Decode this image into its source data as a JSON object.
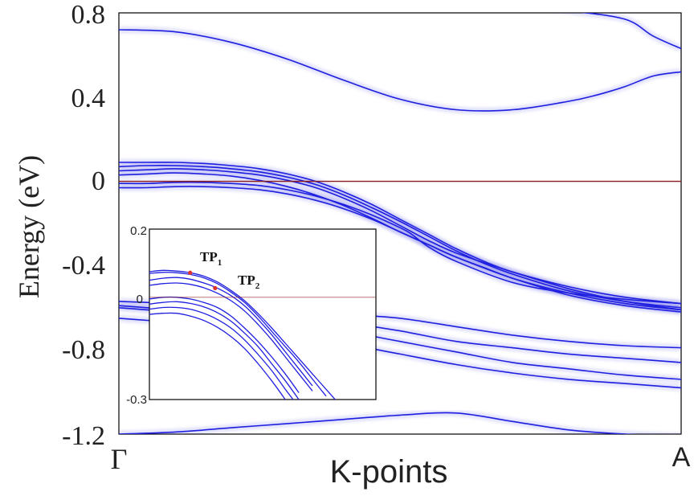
{
  "chart_data": [
    {
      "type": "line",
      "title": "",
      "xlabel": "K-points",
      "ylabel": "Energy (eV)",
      "x_range": [
        0,
        1
      ],
      "ylim": [
        -1.2,
        0.8
      ],
      "y_ticks": [
        "0.8",
        "0.4",
        "0",
        "-0.4",
        "-0.8",
        "-1.2"
      ],
      "y_tick_values": [
        0.8,
        0.4,
        0,
        -0.4,
        -0.8,
        -1.2
      ],
      "x_ticks": [
        "Γ",
        "A"
      ],
      "fermi_level": 0,
      "band_color": "#1f1fe0",
      "fermi_color": "#8b1a1a",
      "grid": false,
      "series": [
        {
          "x": [
            0,
            0.1,
            0.2,
            0.3,
            0.4,
            0.5,
            0.6,
            0.7,
            0.8,
            0.85,
            0.9,
            0.95,
            1.0
          ],
          "values": [
            0.72,
            0.71,
            0.66,
            0.58,
            0.48,
            0.39,
            0.34,
            0.34,
            0.38,
            0.41,
            0.45,
            0.5,
            0.52
          ]
        },
        {
          "x": [
            0.6,
            0.7,
            0.8,
            0.9,
            0.95,
            1.0
          ],
          "values": [
            0.85,
            0.84,
            0.81,
            0.77,
            0.69,
            0.63
          ]
        },
        {
          "x": [
            0.0,
            0.05,
            0.1,
            0.2,
            0.3,
            0.4,
            0.5,
            0.6,
            0.7,
            0.8,
            0.9,
            1.0
          ],
          "values": [
            -0.6,
            -0.61,
            -0.62,
            -0.64,
            -0.67,
            -0.71,
            -0.76,
            -0.81,
            -0.86,
            -0.89,
            -0.92,
            -0.94
          ]
        },
        {
          "x": [
            0.0,
            0.05,
            0.1,
            0.2,
            0.3,
            0.4,
            0.5,
            0.6,
            0.7,
            0.8,
            0.9,
            1.0
          ],
          "values": [
            -0.65,
            -0.66,
            -0.67,
            -0.7,
            -0.73,
            -0.77,
            -0.82,
            -0.87,
            -0.91,
            -0.94,
            -0.96,
            -0.98
          ]
        },
        {
          "x": [
            0.0,
            0.05,
            0.1,
            0.2,
            0.3,
            0.4,
            0.5,
            0.6,
            0.7,
            0.8,
            0.9,
            1.0
          ],
          "values": [
            -0.59,
            -0.6,
            -0.61,
            -0.62,
            -0.64,
            -0.67,
            -0.71,
            -0.76,
            -0.79,
            -0.82,
            -0.84,
            -0.86
          ]
        },
        {
          "x": [
            0.0,
            0.1,
            0.2,
            0.3,
            0.4,
            0.5,
            0.6,
            0.7,
            0.8,
            0.9,
            1.0
          ],
          "values": [
            -0.57,
            -0.58,
            -0.59,
            -0.61,
            -0.63,
            -0.65,
            -0.69,
            -0.73,
            -0.76,
            -0.78,
            -0.79
          ]
        },
        {
          "x": [
            0.0,
            0.1,
            0.2,
            0.3,
            0.4,
            0.5,
            0.6,
            0.7,
            0.8,
            0.9,
            1.0
          ],
          "values": [
            -1.2,
            -1.19,
            -1.17,
            -1.15,
            -1.13,
            -1.11,
            -1.1,
            -1.14,
            -1.18,
            -1.2,
            -1.21
          ]
        },
        {
          "x": [
            0.0,
            0.05,
            0.1,
            0.15,
            0.2,
            0.25,
            0.3,
            0.35,
            0.4,
            0.45,
            0.5,
            0.55,
            0.6,
            0.65,
            0.7,
            0.8,
            0.9,
            1.0
          ],
          "values": [
            0.09,
            0.09,
            0.09,
            0.085,
            0.075,
            0.06,
            0.035,
            0.0,
            -0.05,
            -0.11,
            -0.18,
            -0.25,
            -0.32,
            -0.38,
            -0.43,
            -0.5,
            -0.55,
            -0.58
          ]
        },
        {
          "x": [
            0.0,
            0.05,
            0.1,
            0.15,
            0.2,
            0.25,
            0.3,
            0.35,
            0.4,
            0.45,
            0.5,
            0.55,
            0.6,
            0.65,
            0.7,
            0.8,
            0.9,
            1.0
          ],
          "values": [
            0.07,
            0.075,
            0.075,
            0.07,
            0.06,
            0.045,
            0.02,
            -0.015,
            -0.065,
            -0.125,
            -0.19,
            -0.26,
            -0.33,
            -0.39,
            -0.44,
            -0.52,
            -0.57,
            -0.6
          ]
        },
        {
          "x": [
            0.0,
            0.05,
            0.1,
            0.15,
            0.2,
            0.25,
            0.3,
            0.35,
            0.4,
            0.45,
            0.5,
            0.55,
            0.6,
            0.7,
            0.8,
            0.9,
            1.0
          ],
          "values": [
            0.05,
            0.055,
            0.06,
            0.055,
            0.045,
            0.03,
            0.005,
            -0.03,
            -0.08,
            -0.14,
            -0.21,
            -0.28,
            -0.34,
            -0.43,
            -0.51,
            -0.57,
            -0.61
          ]
        },
        {
          "x": [
            0.0,
            0.05,
            0.1,
            0.15,
            0.2,
            0.25,
            0.3,
            0.35,
            0.4,
            0.45,
            0.5,
            0.55,
            0.6,
            0.65,
            0.7,
            0.8,
            0.9,
            1.0
          ],
          "values": [
            0.03,
            0.035,
            0.04,
            0.035,
            0.025,
            0.005,
            -0.025,
            -0.065,
            -0.115,
            -0.175,
            -0.24,
            -0.3,
            -0.36,
            -0.41,
            -0.46,
            -0.54,
            -0.59,
            -0.62
          ]
        },
        {
          "x": [
            0.0,
            0.05,
            0.1,
            0.15,
            0.2,
            0.25,
            0.3,
            0.35,
            0.4,
            0.45,
            0.5,
            0.52,
            0.55,
            0.6,
            0.7,
            0.8,
            0.9,
            1.0
          ],
          "values": [
            -0.01,
            -0.01,
            -0.005,
            -0.005,
            -0.01,
            -0.02,
            -0.04,
            -0.07,
            -0.11,
            -0.16,
            -0.22,
            -0.25,
            -0.31,
            -0.38,
            -0.48,
            -0.53,
            -0.56,
            -0.58
          ]
        },
        {
          "x": [
            0.0,
            0.05,
            0.1,
            0.15,
            0.2,
            0.25,
            0.3,
            0.35,
            0.4,
            0.45,
            0.5,
            0.55,
            0.6,
            0.7,
            0.8,
            0.9,
            1.0
          ],
          "values": [
            -0.03,
            -0.03,
            -0.025,
            -0.025,
            -0.03,
            -0.04,
            -0.06,
            -0.09,
            -0.13,
            -0.18,
            -0.24,
            -0.3,
            -0.36,
            -0.46,
            -0.53,
            -0.58,
            -0.61
          ]
        }
      ]
    },
    {
      "type": "line",
      "title": "",
      "ylim": [
        -0.3,
        0.2
      ],
      "y_ticks": [
        "0.2",
        "0",
        "-0.3"
      ],
      "y_tick_values": [
        0.2,
        0,
        -0.3
      ],
      "x_range": [
        0,
        0.5
      ],
      "fermi_level": 0,
      "annotations": [
        {
          "label": "TP",
          "subscript": "1",
          "x": 0.09,
          "y": 0.072
        },
        {
          "label": "TP",
          "subscript": "2",
          "x": 0.145,
          "y": 0.027
        }
      ],
      "marker_color": "#e0302a",
      "series": [
        {
          "x": [
            0.0,
            0.03,
            0.06,
            0.09,
            0.12,
            0.15,
            0.18,
            0.21,
            0.24,
            0.27,
            0.3,
            0.33,
            0.36,
            0.39,
            0.42
          ],
          "values": [
            0.075,
            0.079,
            0.077,
            0.072,
            0.062,
            0.045,
            0.02,
            -0.01,
            -0.048,
            -0.09,
            -0.135,
            -0.18,
            -0.225,
            -0.27,
            -0.315
          ]
        },
        {
          "x": [
            0.0,
            0.03,
            0.06,
            0.09,
            0.12,
            0.15,
            0.18,
            0.21,
            0.24,
            0.27,
            0.3,
            0.33,
            0.36,
            0.39
          ],
          "values": [
            0.07,
            0.073,
            0.072,
            0.067,
            0.057,
            0.04,
            0.015,
            -0.015,
            -0.055,
            -0.1,
            -0.145,
            -0.19,
            -0.24,
            -0.29
          ]
        },
        {
          "x": [
            0.0,
            0.03,
            0.06,
            0.09,
            0.12,
            0.15,
            0.18,
            0.21,
            0.24,
            0.27,
            0.3,
            0.33,
            0.36
          ],
          "values": [
            0.05,
            0.056,
            0.058,
            0.053,
            0.042,
            0.027,
            0.005,
            -0.025,
            -0.065,
            -0.11,
            -0.16,
            -0.21,
            -0.26
          ]
        },
        {
          "x": [
            0.0,
            0.03,
            0.06,
            0.09,
            0.12,
            0.15,
            0.18,
            0.21,
            0.24,
            0.27,
            0.3,
            0.33,
            0.36
          ],
          "values": [
            0.035,
            0.04,
            0.042,
            0.038,
            0.028,
            0.012,
            -0.01,
            -0.04,
            -0.08,
            -0.125,
            -0.175,
            -0.225,
            -0.275
          ]
        },
        {
          "x": [
            0.0,
            0.03,
            0.06,
            0.09,
            0.12,
            0.15,
            0.18,
            0.21,
            0.24,
            0.27,
            0.3,
            0.33
          ],
          "values": [
            -0.005,
            0.0,
            0.0,
            -0.005,
            -0.015,
            -0.03,
            -0.055,
            -0.09,
            -0.13,
            -0.175,
            -0.225,
            -0.28
          ]
        },
        {
          "x": [
            0.0,
            0.03,
            0.06,
            0.09,
            0.12,
            0.15,
            0.18,
            0.21,
            0.24,
            0.27,
            0.3,
            0.33
          ],
          "values": [
            -0.02,
            -0.015,
            -0.013,
            -0.018,
            -0.028,
            -0.045,
            -0.07,
            -0.105,
            -0.145,
            -0.195,
            -0.245,
            -0.3
          ]
        },
        {
          "x": [
            0.0,
            0.03,
            0.06,
            0.09,
            0.12,
            0.15,
            0.18,
            0.21,
            0.24,
            0.27,
            0.3,
            0.32
          ],
          "values": [
            -0.035,
            -0.03,
            -0.03,
            -0.035,
            -0.047,
            -0.065,
            -0.09,
            -0.125,
            -0.168,
            -0.215,
            -0.27,
            -0.305
          ]
        },
        {
          "x": [
            0.0,
            0.03,
            0.06,
            0.09,
            0.12,
            0.15,
            0.18,
            0.21,
            0.24,
            0.27,
            0.3
          ],
          "values": [
            -0.05,
            -0.047,
            -0.047,
            -0.055,
            -0.068,
            -0.088,
            -0.115,
            -0.15,
            -0.195,
            -0.245,
            -0.3
          ]
        }
      ]
    }
  ]
}
